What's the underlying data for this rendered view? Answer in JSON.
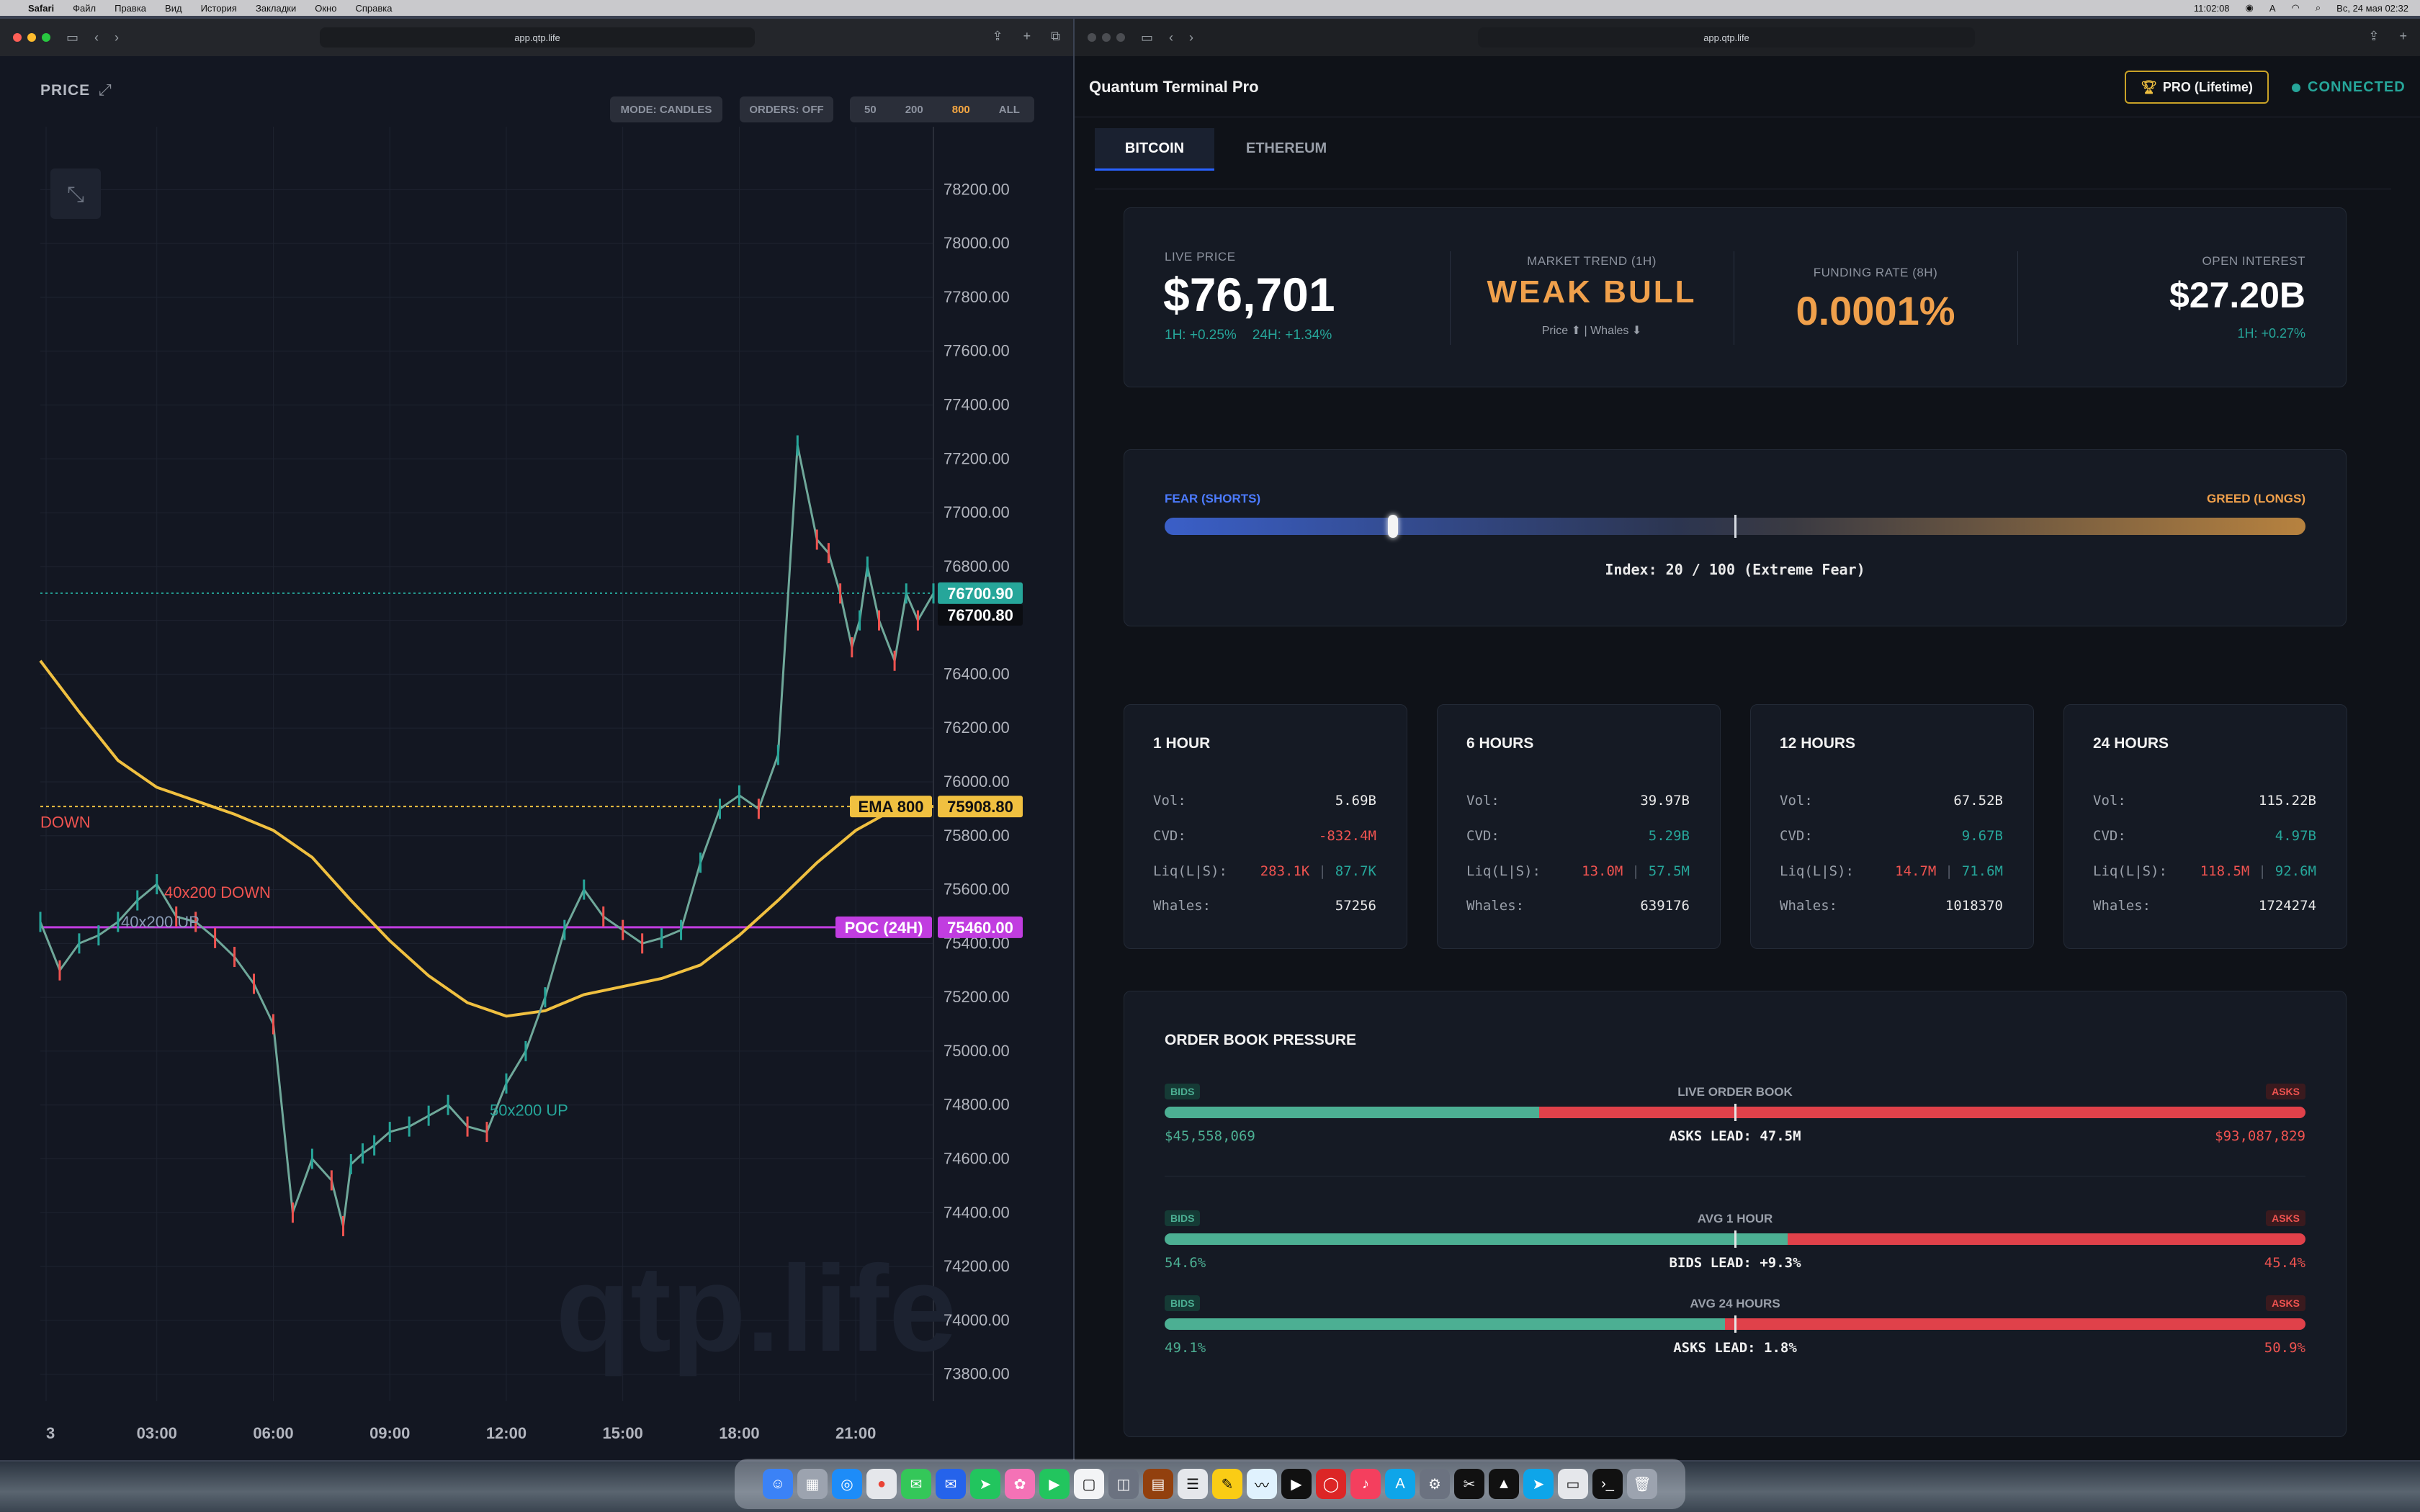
{
  "menubar": {
    "items": [
      "Safari",
      "Файл",
      "Правка",
      "Вид",
      "История",
      "Закладки",
      "Окно",
      "Справка"
    ],
    "time": "11:02:08",
    "datetime": "Вс, 24 мая 02:32"
  },
  "left_browser": {
    "url": "app.qtp.life"
  },
  "right_browser": {
    "url": "app.qtp.life"
  },
  "chart_header": {
    "title": "PRICE",
    "mode": "MODE: CANDLES",
    "orders": "ORDERS: OFF",
    "ranges": [
      "50",
      "200",
      "800",
      "ALL"
    ],
    "active_range": "800"
  },
  "chart_data": {
    "type": "line",
    "watermark": "qtp.life",
    "y_axis_labels": [
      "78200.00",
      "78000.00",
      "77800.00",
      "77600.00",
      "77400.00",
      "77200.00",
      "77000.00",
      "76800.00",
      "76600.00",
      "76400.00",
      "76200.00",
      "76000.00",
      "75800.00",
      "75600.00",
      "75400.00",
      "75200.00",
      "75000.00",
      "74800.00",
      "74600.00",
      "74400.00",
      "74200.00",
      "74000.00",
      "73800.00"
    ],
    "ylim": [
      73700,
      78300
    ],
    "x_axis_labels": [
      "3",
      "03:00",
      "06:00",
      "09:00",
      "12:00",
      "15:00",
      "18:00",
      "21:00"
    ],
    "price_tags": {
      "last": "76700.90",
      "mark": "76700.80",
      "ema_label": "EMA 800",
      "ema_value": "75908.80",
      "poc_label": "POC (24H)",
      "poc_value": "75460.00"
    },
    "annotations": [
      "DOWN",
      "40x200 DOWN",
      "40x200 UP",
      "50x200 UP"
    ],
    "series": [
      {
        "name": "price",
        "x": [
          0,
          0.5,
          1,
          1.5,
          2,
          2.5,
          3,
          3.5,
          4,
          4.5,
          5,
          5.5,
          6,
          6.5,
          7,
          7.5,
          7.8,
          8,
          8.3,
          8.6,
          9,
          9.5,
          10,
          10.5,
          11,
          11.5,
          12,
          12.5,
          13,
          13.5,
          14,
          14.5,
          15,
          15.5,
          16,
          16.5,
          17,
          17.5,
          18,
          18.5,
          19,
          19.5,
          20,
          20.3,
          20.6,
          20.9,
          21.1,
          21.3,
          21.6,
          22,
          22.3,
          22.6,
          23
        ],
        "values": [
          75480,
          75300,
          75400,
          75430,
          75480,
          75560,
          75620,
          75500,
          75480,
          75420,
          75350,
          75250,
          75100,
          74400,
          74600,
          74520,
          74350,
          74580,
          74620,
          74650,
          74700,
          74720,
          74760,
          74800,
          74720,
          74700,
          74880,
          75000,
          75200,
          75450,
          75600,
          75500,
          75450,
          75400,
          75420,
          75450,
          75700,
          75900,
          75950,
          75900,
          76100,
          77250,
          76900,
          76850,
          76700,
          76500,
          76600,
          76800,
          76600,
          76450,
          76700,
          76600,
          76700
        ]
      },
      {
        "name": "EMA 800",
        "x": [
          0,
          1,
          2,
          3,
          4,
          5,
          6,
          7,
          8,
          9,
          10,
          11,
          12,
          13,
          14,
          15,
          16,
          17,
          18,
          19,
          20,
          21,
          22,
          23
        ],
        "values": [
          76450,
          76260,
          76080,
          75980,
          75930,
          75880,
          75820,
          75720,
          75560,
          75410,
          75280,
          75180,
          75130,
          75150,
          75210,
          75240,
          75270,
          75320,
          75430,
          75560,
          75700,
          75820,
          75900,
          75909
        ]
      }
    ]
  },
  "app": {
    "title": "Quantum Terminal Pro",
    "badge": "PRO (Lifetime)",
    "status": "CONNECTED",
    "tabs": [
      "BITCOIN",
      "ETHEREUM"
    ]
  },
  "stats": {
    "live_price": {
      "label": "LIVE PRICE",
      "value": "$76,701",
      "h1": "1H: +0.25%",
      "h24": "24H: +1.34%"
    },
    "trend": {
      "label": "MARKET TREND (1H)",
      "value": "WEAK BULL",
      "sub": "Price ⬆ | Whales ⬇"
    },
    "funding": {
      "label": "FUNDING RATE (8H)",
      "value": "0.0001%"
    },
    "oi": {
      "label": "OPEN INTEREST",
      "value": "$27.20B",
      "h1": "1H: +0.27%"
    }
  },
  "sentiment": {
    "left": "FEAR (SHORTS)",
    "right": "GREED (LONGS)",
    "index_text": "Index: 20 / 100 (Extreme Fear)",
    "index": 20
  },
  "timeframes": [
    {
      "title": "1 HOUR",
      "vol": "5.69B",
      "cvd": "-832.4M",
      "cvd_color": "red",
      "liq_l": "283.1K",
      "liq_s": "87.7K",
      "whales": "57256"
    },
    {
      "title": "6 HOURS",
      "vol": "39.97B",
      "cvd": "5.29B",
      "cvd_color": "green",
      "liq_l": "13.0M",
      "liq_s": "57.5M",
      "whales": "639176"
    },
    {
      "title": "12 HOURS",
      "vol": "67.52B",
      "cvd": "9.67B",
      "cvd_color": "green",
      "liq_l": "14.7M",
      "liq_s": "71.6M",
      "whales": "1018370"
    },
    {
      "title": "24 HOURS",
      "vol": "115.22B",
      "cvd": "4.97B",
      "cvd_color": "green",
      "liq_l": "118.5M",
      "liq_s": "92.6M",
      "whales": "1724274"
    }
  ],
  "tf_labels": {
    "vol": "Vol:",
    "cvd": "CVD:",
    "liq": "Liq(L|S):",
    "whales": "Whales:",
    "sep": "|"
  },
  "orderbook": {
    "title": "ORDER BOOK PRESSURE",
    "bids": "BIDS",
    "asks": "ASKS",
    "rows": [
      {
        "title": "LIVE ORDER BOOK",
        "bid_value": "$45,558,069",
        "ask_value": "$93,087,829",
        "lead": "ASKS LEAD: 47.5M",
        "bid_share": 0.328
      },
      {
        "title": "AVG 1 HOUR",
        "bid_value": "54.6%",
        "ask_value": "45.4%",
        "lead": "BIDS LEAD: +9.3%",
        "bid_share": 0.546
      },
      {
        "title": "AVG 24 HOURS",
        "bid_value": "49.1%",
        "ask_value": "50.9%",
        "lead": "ASKS LEAD: 1.8%",
        "bid_share": 0.491
      }
    ]
  }
}
